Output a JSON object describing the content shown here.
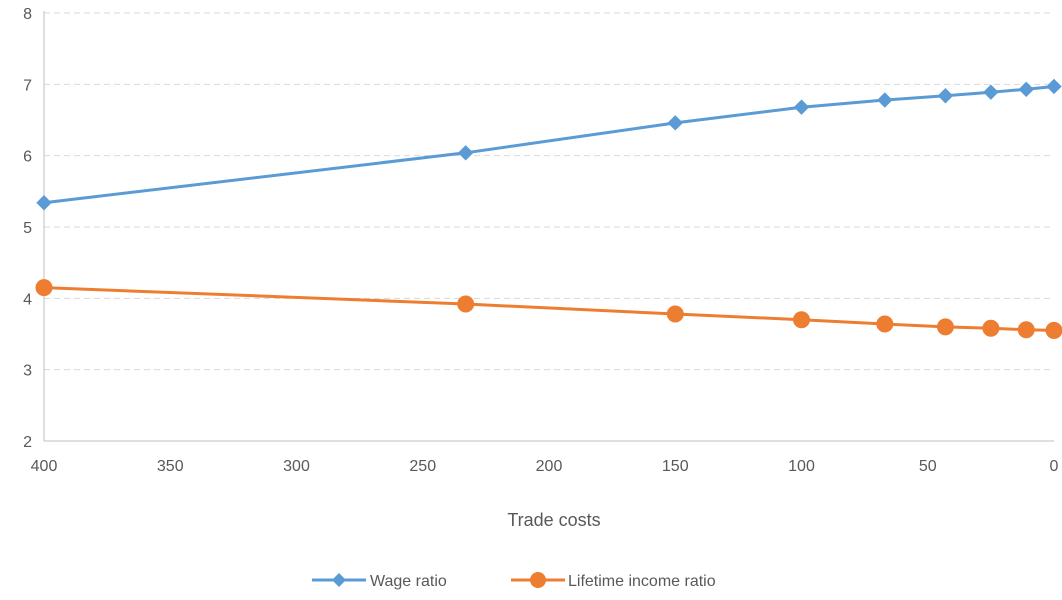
{
  "chart_data": {
    "type": "line",
    "title": "",
    "xlabel": "Trade costs",
    "ylabel": "",
    "xlim": [
      400,
      0
    ],
    "ylim": [
      2,
      8
    ],
    "x_reversed": true,
    "xticks": [
      400,
      350,
      300,
      250,
      200,
      150,
      100,
      50,
      0
    ],
    "yticks": [
      2,
      3,
      4,
      5,
      6,
      7,
      8
    ],
    "grid": "horizontal dashed",
    "legend_position": "bottom",
    "x": [
      400,
      233,
      150,
      100,
      67,
      43,
      25,
      11,
      0
    ],
    "series": [
      {
        "name": "Wage ratio",
        "color": "#5B9BD5",
        "marker": "diamond",
        "values": [
          5.34,
          6.04,
          6.46,
          6.68,
          6.78,
          6.84,
          6.89,
          6.93,
          6.97
        ]
      },
      {
        "name": "Lifetime income ratio",
        "color": "#ED7D31",
        "marker": "circle",
        "values": [
          4.15,
          3.92,
          3.78,
          3.7,
          3.64,
          3.6,
          3.58,
          3.56,
          3.55
        ]
      }
    ]
  }
}
